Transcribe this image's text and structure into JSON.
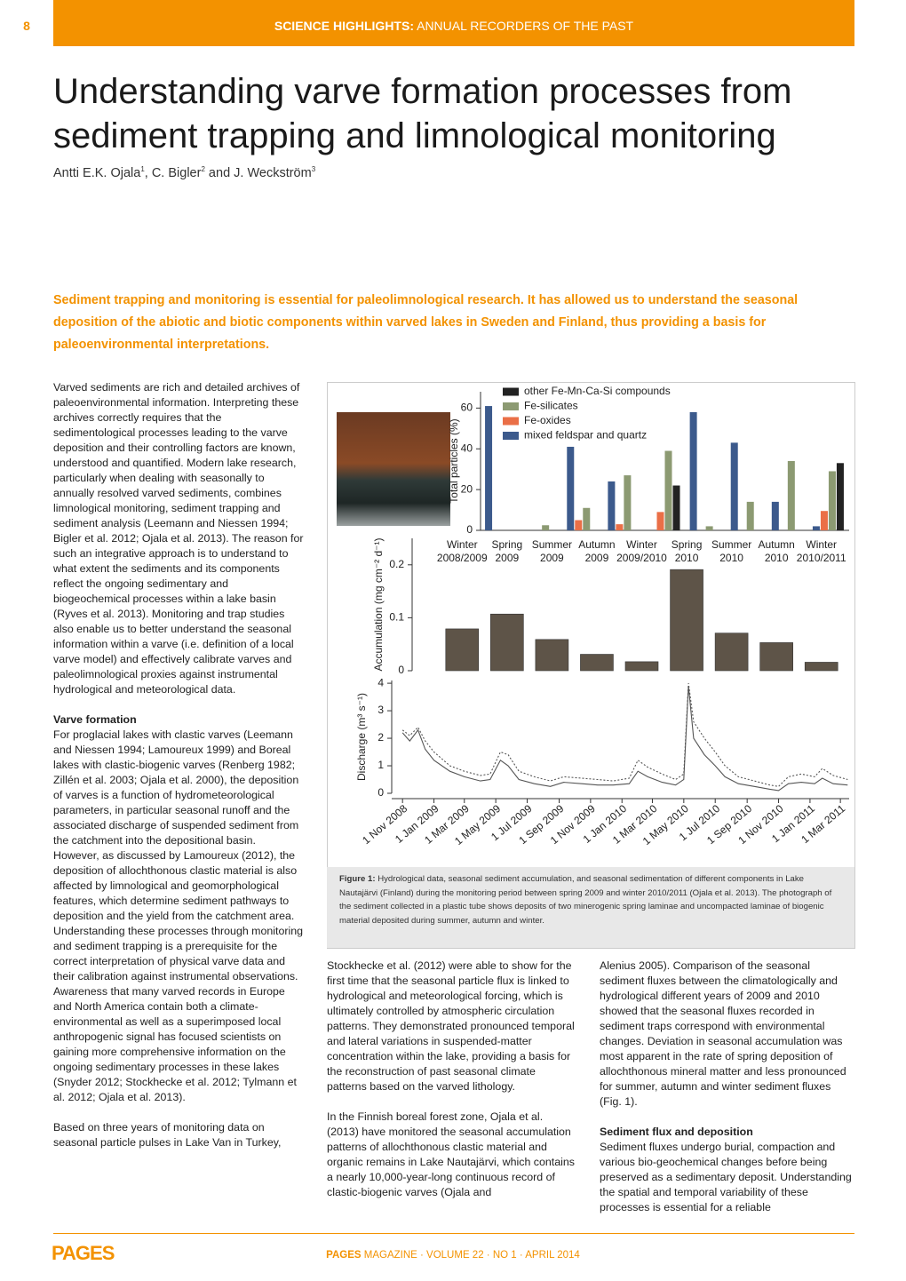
{
  "header": {
    "page": "8",
    "section": "SCIENCE HIGHLIGHTS:",
    "subtitle": "ANNUAL RECORDERS OF THE PAST"
  },
  "title": [
    "Understanding varve formation processes from",
    "sediment trapping and limnological monitoring"
  ],
  "authors": [
    {
      "text": "Antti E.K. Ojala",
      "sup": "1"
    },
    {
      "text": ", C. Bigler",
      "sup": "2"
    },
    {
      "text": " and J. Weckström",
      "sup": "3"
    }
  ],
  "lead": "Sediment trapping and monitoring is essential for paleolimnological research. It has allowed us to understand the seasonal deposition of the abiotic and biotic components within varved lakes in Sweden and Finland, thus providing a basis for paleoenvironmental interpretations.",
  "columns": [
    {
      "blocks": [
        {
          "text": "Varved sediments are rich and detailed archives of paleoenvironmental information. Interpreting these archives correctly requires that the sedimentological processes leading to the varve deposition and their controlling factors are known, understood and quantified. Modern lake research, particularly when dealing with seasonally to annually resolved varved sediments, combines limnological monitoring, sediment trapping and sediment analysis (Leemann and Niessen 1994; Bigler et al. 2012; Ojala et al. 2013). The reason for such an integrative approach is to understand to what extent the sediments and its components reflect the ongoing sedimentary and biogeochemical processes within a lake basin (Ryves et al. 2013). Monitoring and trap studies also enable us to better understand the seasonal information within a varve (i.e. definition of a local varve model) and effectively calibrate varves and paleolimnological proxies against instrumental hydrological and meteorological data."
        },
        {
          "heading": "Varve formation"
        },
        {
          "text": "For proglacial lakes with clastic varves (Leemann and Niessen 1994; Lamoureux 1999) and Boreal lakes with clastic-biogenic varves (Renberg 1982; Zillén et al. 2003; Ojala et al. 2000), the deposition of varves is a function of hydrometeorological parameters, in particular seasonal runoff and the associated discharge of suspended sediment from the catchment into the depositional basin. However, as discussed by Lamoureux (2012), the deposition of allochthonous clastic material is also affected by limnological and geomorphological features, which determine sediment pathways to deposition and the yield from the catchment area. Understanding these processes through monitoring and sediment trapping is a prerequisite for the correct interpretation of physical varve data and their calibration against instrumental observations. Awareness that many varved records in Europe and North America contain both a climate-environmental as well as a superimposed local anthropogenic signal has focused scientists on gaining more comprehensive information on the ongoing sedimentary processes in these lakes (Snyder 2012; Stockhecke et al. 2012; Tylmann et al. 2012; Ojala et al. 2013)."
        },
        {
          "text": "Based on three years of monitoring data on seasonal particle pulses in Lake Van in Turkey,"
        }
      ]
    },
    {
      "blocks": [
        {
          "text": "Stockhecke et al. (2012) were able to show for the first time that the seasonal particle flux is linked to hydrological and meteorological forcing, which is ultimately controlled by atmospheric circulation patterns. They demonstrated pronounced temporal and lateral variations in suspended-matter concentration within the lake, providing a basis for the reconstruction of past seasonal climate patterns based on the varved lithology."
        },
        {
          "text": "In the Finnish boreal forest zone, Ojala et al. (2013) have monitored the seasonal accumulation patterns of allochthonous clastic material and organic remains in Lake Nautajärvi, which contains a nearly 10,000-year-long continuous record of clastic-biogenic varves (Ojala and"
        }
      ]
    },
    {
      "blocks": [
        {
          "text": "Alenius 2005). Comparison of the seasonal sediment fluxes between the climatologically and hydrological different years of 2009 and 2010 showed that the seasonal fluxes recorded in sediment traps correspond with environmental changes. Deviation in seasonal accumulation was most apparent in the rate of spring deposition of allochthonous mineral matter and less pronounced for summer, autumn and winter sediment fluxes (Fig. 1)."
        },
        {
          "heading": "Sediment flux and deposition"
        },
        {
          "text": "Sediment fluxes undergo burial, compaction and various bio-geochemical changes before being preserved as a sedimentary deposit. Understanding the spatial and temporal variability of these processes is essential for a reliable"
        }
      ]
    }
  ],
  "figure": {
    "panels": [
      {
        "type": "bar",
        "ylabel": "Total particles (%)",
        "categories": [
          [
            "Winter",
            "2008/2009"
          ],
          [
            "Spring",
            "2009"
          ],
          [
            "Summer",
            "2009"
          ],
          [
            "Autumn",
            "2009"
          ],
          [
            "Winter",
            "2009/2010"
          ],
          [
            "Spring",
            "2010"
          ],
          [
            "Summer",
            "2010"
          ],
          [
            "Autumn",
            "2010"
          ],
          [
            "Winter",
            "2010/2011"
          ]
        ],
        "series": [
          {
            "name": "other Fe-Mn-Ca-Si compounds",
            "color": "#222222",
            "values": [
              0,
              0,
              0,
              0,
              22,
              0,
              0,
              0,
              33
            ]
          },
          {
            "name": "Fe-silicates",
            "color": "#8c9a72",
            "values": [
              0,
              2.5,
              11,
              27,
              39,
              2,
              14,
              34,
              29
            ]
          },
          {
            "name": "Fe-oxides",
            "color": "#ea6f47",
            "values": [
              0,
              0,
              5,
              3,
              9,
              0,
              0,
              0,
              9.5
            ]
          },
          {
            "name": "mixed feldspar and quartz",
            "color": "#3c5a8c",
            "values": [
              61,
              0,
              41,
              24,
              0,
              58,
              43,
              14,
              2
            ]
          }
        ],
        "ylim": [
          0,
          68
        ],
        "yticks": [
          0,
          20,
          40,
          60
        ]
      },
      {
        "type": "bar",
        "ylabel": "Accumulation (mg cm⁻² d⁻¹)",
        "values": [
          0.079,
          0.107,
          0.059,
          0.031,
          0.017,
          0.191,
          0.071,
          0.053,
          0.016
        ],
        "color": "#5e5448",
        "ylim": [
          0,
          0.25
        ],
        "yticks": [
          0,
          0.1,
          0.2
        ]
      },
      {
        "type": "line",
        "ylabel": "Discharge (m³ s⁻¹)",
        "x": [
          "2008-11-01",
          "2008-11-15",
          "2008-12-01",
          "2008-12-15",
          "2009-01-01",
          "2009-02-01",
          "2009-03-01",
          "2009-04-01",
          "2009-04-20",
          "2009-05-10",
          "2009-05-25",
          "2009-06-15",
          "2009-07-15",
          "2009-08-15",
          "2009-09-10",
          "2009-10-15",
          "2009-11-15",
          "2009-12-15",
          "2010-01-15",
          "2010-02-01",
          "2010-02-20",
          "2010-03-20",
          "2010-04-15",
          "2010-05-01",
          "2010-05-10",
          "2010-05-20",
          "2010-06-10",
          "2010-07-01",
          "2010-07-20",
          "2010-08-15",
          "2010-09-15",
          "2010-10-15",
          "2010-11-01",
          "2010-11-20",
          "2010-12-15",
          "2011-01-10",
          "2011-01-25",
          "2011-02-15",
          "2011-03-15"
        ],
        "series": [
          {
            "color": "#555555",
            "dash": "solid",
            "values": [
              2.2,
              1.9,
              2.3,
              1.6,
              1.2,
              0.8,
              0.6,
              0.45,
              0.5,
              1.2,
              1.0,
              0.5,
              0.35,
              0.25,
              0.4,
              0.35,
              0.3,
              0.3,
              0.35,
              0.8,
              0.6,
              0.4,
              0.3,
              0.5,
              3.9,
              2.0,
              1.4,
              1.0,
              0.6,
              0.35,
              0.25,
              0.15,
              0.1,
              0.35,
              0.4,
              0.35,
              0.55,
              0.35,
              0.3
            ]
          },
          {
            "color": "#555555",
            "dash": "dotted",
            "values": [
              2.3,
              2.1,
              2.4,
              1.9,
              1.5,
              1.0,
              0.8,
              0.65,
              0.7,
              1.5,
              1.4,
              0.8,
              0.6,
              0.45,
              0.6,
              0.55,
              0.5,
              0.45,
              0.55,
              1.2,
              0.95,
              0.7,
              0.5,
              0.7,
              4.0,
              2.6,
              2.0,
              1.5,
              1.0,
              0.6,
              0.45,
              0.3,
              0.25,
              0.6,
              0.7,
              0.6,
              0.9,
              0.65,
              0.5
            ]
          }
        ],
        "xlim": [
          "2008-10-11",
          "2011-03-18"
        ],
        "ylim": [
          0,
          4.1
        ],
        "yticks": [
          0,
          1,
          2,
          3,
          4
        ],
        "xticks": [
          {
            "value": "2008-11-01",
            "label": "1 Nov 2008"
          },
          {
            "value": "2009-01-01",
            "label": "1 Jan 2009"
          },
          {
            "value": "2009-03-01",
            "label": "1 Mar 2009"
          },
          {
            "value": "2009-05-01",
            "label": "1 May 2009"
          },
          {
            "value": "2009-07-01",
            "label": "1 Jul 2009"
          },
          {
            "value": "2009-09-01",
            "label": "1 Sep 2009"
          },
          {
            "value": "2009-11-01",
            "label": "1 Nov 2009"
          },
          {
            "value": "2010-01-01",
            "label": "1 Jan 2010"
          },
          {
            "value": "2010-03-01",
            "label": "1 Mar 2010"
          },
          {
            "value": "2010-05-01",
            "label": "1 May 2010"
          },
          {
            "value": "2010-07-01",
            "label": "1 Jul 2010"
          },
          {
            "value": "2010-09-01",
            "label": "1 Sep 2010"
          },
          {
            "value": "2010-11-01",
            "label": "1 Nov 2010"
          },
          {
            "value": "2011-01-01",
            "label": "1 Jan 2011"
          },
          {
            "value": "2011-03-01",
            "label": "1 Mar 2011"
          }
        ]
      }
    ],
    "caption_label": "Figure 1:",
    "caption": "Hydrological data, seasonal sediment accumulation, and seasonal sedimentation of different components in Lake Nautajärvi (Finland) during the monitoring period between spring 2009 and winter 2010/2011 (Ojala et al. 2013). The photograph of the sediment collected in a plastic tube shows deposits of two minerogenic spring laminae and uncompacted laminae of biogenic material deposited during summer, autumn and winter."
  },
  "footer": {
    "logo": "PAGES",
    "brand": "PAGES",
    "issue": "MAGAZINE · VOLUME 22 · NO 1 · APRIL 2014"
  }
}
